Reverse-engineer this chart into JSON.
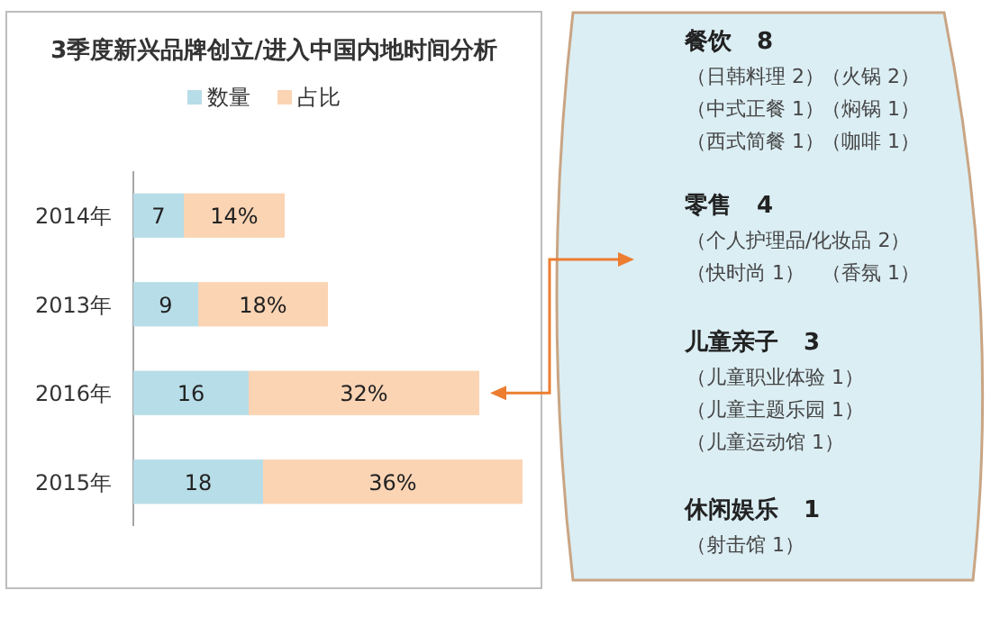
{
  "chart_data": [
    {
      "type": "bar",
      "orientation": "horizontal",
      "stacked": true,
      "title": "3季度新兴品牌创立/进入中国内地时间分析",
      "categories": [
        "2014年",
        "2013年",
        "2016年",
        "2015年"
      ],
      "series": [
        {
          "name": "数量",
          "color": "#b7dde8",
          "values": [
            7,
            9,
            16,
            18
          ]
        },
        {
          "name": "占比",
          "color": "#fbd4b4",
          "values": [
            14,
            18,
            32,
            36
          ],
          "value_labels": [
            "14%",
            "18%",
            "32%",
            "36%"
          ]
        }
      ],
      "data_labels": true,
      "legend": "top"
    },
    {
      "type": "other",
      "categories": [
        "餐饮",
        "零售",
        "儿童亲子",
        "休闲娱乐"
      ],
      "values": [
        8,
        4,
        3,
        1
      ],
      "data_labels": true,
      "annotations": [
        "（日韩料理 2）",
        "（火锅 2）",
        "（中式正餐 1）",
        "（焖锅 1）",
        "（西式简餐 1）",
        "（咖啡 1）",
        "（个人护理品/化妆品 2）",
        "（快时尚 1）",
        "（香氛 1）",
        "（儿童职业体验 1）",
        "（儿童主题乐园 1）",
        "（儿童运动馆 1）",
        "（射击馆 1）"
      ]
    }
  ]
}
